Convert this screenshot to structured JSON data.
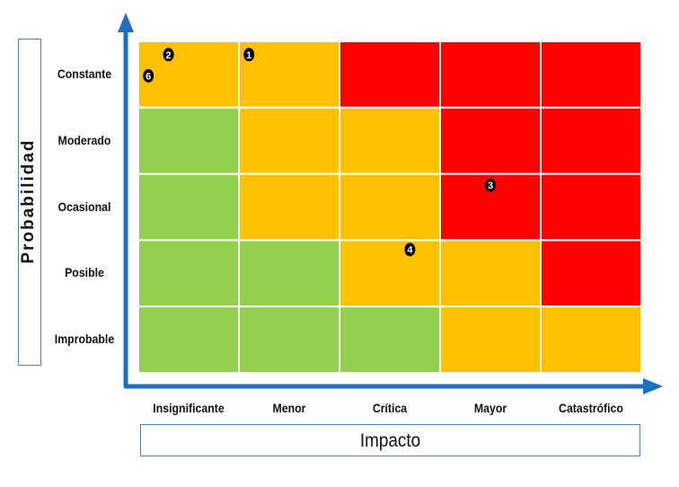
{
  "chart_data": {
    "type": "heatmap",
    "xlabel": "Impacto",
    "ylabel": "Probabilidad",
    "columns": [
      "Insignificante",
      "Menor",
      "Crítica",
      "Mayor",
      "Catastrófico"
    ],
    "rows": [
      "Constante",
      "Moderado",
      "Ocasional",
      "Posible",
      "Improbable"
    ],
    "levels": {
      "green": "#92d050",
      "amber": "#ffc000",
      "red": "#ff0000"
    },
    "cells": [
      [
        "amber",
        "amber",
        "red",
        "red",
        "red"
      ],
      [
        "green",
        "amber",
        "amber",
        "red",
        "red"
      ],
      [
        "green",
        "amber",
        "amber",
        "red",
        "red"
      ],
      [
        "green",
        "green",
        "amber",
        "amber",
        "red"
      ],
      [
        "green",
        "green",
        "green",
        "amber",
        "amber"
      ]
    ],
    "risks": [
      {
        "label": "2",
        "row": "Constante",
        "column": "Insignificante"
      },
      {
        "label": "6",
        "row": "Constante",
        "column": "Insignificante"
      },
      {
        "label": "1",
        "row": "Constante",
        "column": "Menor"
      },
      {
        "label": "3",
        "row": "Ocasional",
        "column": "Mayor"
      },
      {
        "label": "4",
        "row": "Posible",
        "column": "Crítica"
      }
    ],
    "axis_color": "#1f6fc0"
  }
}
